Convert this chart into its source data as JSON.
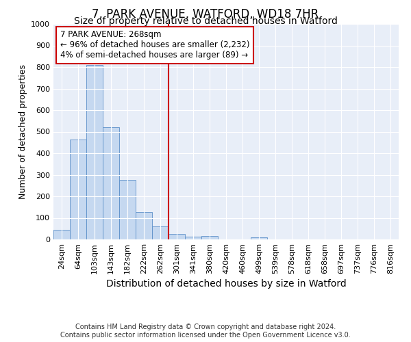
{
  "title1": "7, PARK AVENUE, WATFORD, WD18 7HR",
  "title2": "Size of property relative to detached houses in Watford",
  "xlabel": "Distribution of detached houses by size in Watford",
  "ylabel": "Number of detached properties",
  "bar_labels": [
    "24sqm",
    "64sqm",
    "103sqm",
    "143sqm",
    "182sqm",
    "222sqm",
    "262sqm",
    "301sqm",
    "341sqm",
    "380sqm",
    "420sqm",
    "460sqm",
    "499sqm",
    "539sqm",
    "578sqm",
    "618sqm",
    "658sqm",
    "697sqm",
    "737sqm",
    "776sqm",
    "816sqm"
  ],
  "bar_values": [
    45,
    462,
    810,
    520,
    275,
    128,
    60,
    25,
    12,
    15,
    0,
    0,
    10,
    0,
    0,
    0,
    0,
    0,
    0,
    0,
    0
  ],
  "bar_color": "#c5d8f0",
  "bar_edge_color": "#5b8fc9",
  "vline_color": "#cc0000",
  "annotation_text": "7 PARK AVENUE: 268sqm\n← 96% of detached houses are smaller (2,232)\n4% of semi-detached houses are larger (89) →",
  "annotation_box_facecolor": "#ffffff",
  "annotation_box_edgecolor": "#cc0000",
  "ylim": [
    0,
    1000
  ],
  "yticks": [
    0,
    100,
    200,
    300,
    400,
    500,
    600,
    700,
    800,
    900,
    1000
  ],
  "plot_bg_color": "#e8eef8",
  "fig_bg_color": "#ffffff",
  "footer1": "Contains HM Land Registry data © Crown copyright and database right 2024.",
  "footer2": "Contains public sector information licensed under the Open Government Licence v3.0.",
  "title1_fontsize": 12,
  "title2_fontsize": 10,
  "xlabel_fontsize": 10,
  "ylabel_fontsize": 9,
  "tick_fontsize": 8,
  "annotation_fontsize": 8.5,
  "footer_fontsize": 7
}
